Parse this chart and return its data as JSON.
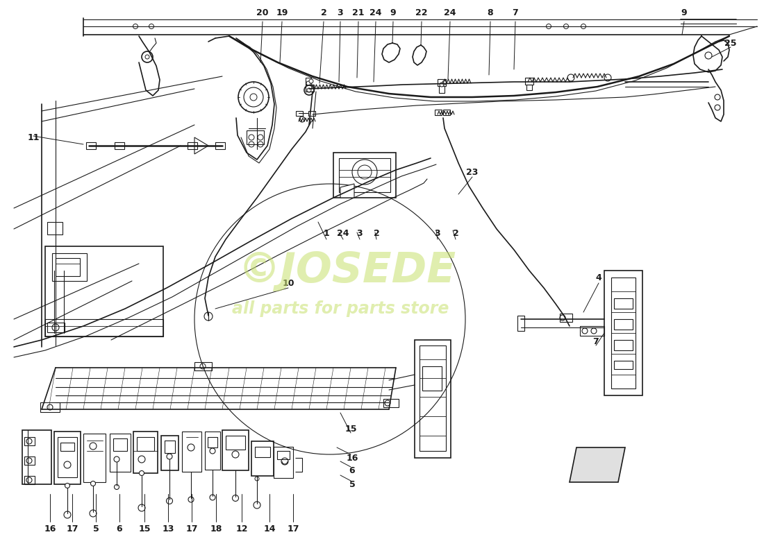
{
  "bg_color": "#ffffff",
  "line_color": "#1a1a1a",
  "watermark_color": "#c8e06e",
  "watermark_alpha": 0.55,
  "figsize": [
    11.0,
    8.0
  ],
  "top_labels": [
    [
      "20",
      378,
      18
    ],
    [
      "19",
      406,
      18
    ],
    [
      "2",
      466,
      18
    ],
    [
      "3",
      490,
      18
    ],
    [
      "21",
      516,
      18
    ],
    [
      "24",
      541,
      18
    ],
    [
      "9",
      566,
      18
    ],
    [
      "22",
      607,
      18
    ],
    [
      "24",
      648,
      18
    ],
    [
      "8",
      706,
      18
    ],
    [
      "7",
      742,
      18
    ],
    [
      "9",
      985,
      18
    ]
  ],
  "mid_labels": [
    [
      "25",
      1052,
      62
    ],
    [
      "11",
      48,
      198
    ],
    [
      "23",
      680,
      248
    ],
    [
      "1",
      470,
      337
    ],
    [
      "24",
      494,
      337
    ],
    [
      "3",
      518,
      337
    ],
    [
      "2",
      542,
      337
    ],
    [
      "3",
      630,
      337
    ],
    [
      "2",
      656,
      337
    ],
    [
      "10",
      415,
      408
    ],
    [
      "4",
      862,
      400
    ],
    [
      "7",
      858,
      492
    ]
  ],
  "bot_labels": [
    [
      "15",
      505,
      618
    ],
    [
      "16",
      507,
      660
    ],
    [
      "6",
      507,
      678
    ],
    [
      "5",
      507,
      698
    ],
    [
      "16",
      72,
      762
    ],
    [
      "17",
      104,
      762
    ],
    [
      "5",
      138,
      762
    ],
    [
      "6",
      172,
      762
    ],
    [
      "15",
      208,
      762
    ],
    [
      "13",
      242,
      762
    ],
    [
      "17",
      276,
      762
    ],
    [
      "18",
      311,
      762
    ],
    [
      "12",
      348,
      762
    ],
    [
      "14",
      388,
      762
    ],
    [
      "17",
      422,
      762
    ]
  ]
}
